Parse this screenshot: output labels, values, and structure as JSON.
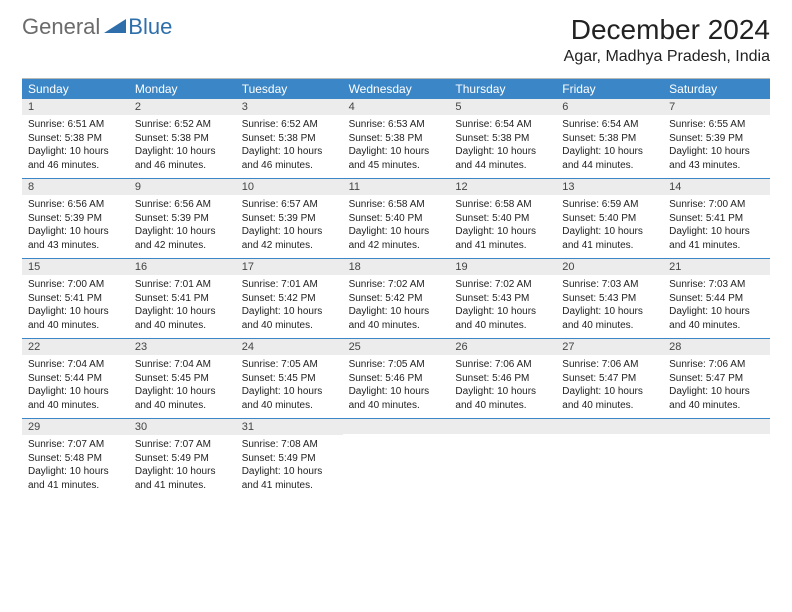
{
  "logo": {
    "general": "General",
    "blue": "Blue"
  },
  "title": "December 2024",
  "location": "Agar, Madhya Pradesh, India",
  "colors": {
    "header_bg": "#3b86c6",
    "daynum_bg": "#ececec",
    "rule": "#3b86c6",
    "logo_gray": "#6b6b6b",
    "logo_blue": "#2e6fab"
  },
  "weekdays": [
    "Sunday",
    "Monday",
    "Tuesday",
    "Wednesday",
    "Thursday",
    "Friday",
    "Saturday"
  ],
  "weeks": [
    [
      {
        "day": 1,
        "sunrise": "6:51 AM",
        "sunset": "5:38 PM",
        "daylight": "10 hours and 46 minutes."
      },
      {
        "day": 2,
        "sunrise": "6:52 AM",
        "sunset": "5:38 PM",
        "daylight": "10 hours and 46 minutes."
      },
      {
        "day": 3,
        "sunrise": "6:52 AM",
        "sunset": "5:38 PM",
        "daylight": "10 hours and 46 minutes."
      },
      {
        "day": 4,
        "sunrise": "6:53 AM",
        "sunset": "5:38 PM",
        "daylight": "10 hours and 45 minutes."
      },
      {
        "day": 5,
        "sunrise": "6:54 AM",
        "sunset": "5:38 PM",
        "daylight": "10 hours and 44 minutes."
      },
      {
        "day": 6,
        "sunrise": "6:54 AM",
        "sunset": "5:38 PM",
        "daylight": "10 hours and 44 minutes."
      },
      {
        "day": 7,
        "sunrise": "6:55 AM",
        "sunset": "5:39 PM",
        "daylight": "10 hours and 43 minutes."
      }
    ],
    [
      {
        "day": 8,
        "sunrise": "6:56 AM",
        "sunset": "5:39 PM",
        "daylight": "10 hours and 43 minutes."
      },
      {
        "day": 9,
        "sunrise": "6:56 AM",
        "sunset": "5:39 PM",
        "daylight": "10 hours and 42 minutes."
      },
      {
        "day": 10,
        "sunrise": "6:57 AM",
        "sunset": "5:39 PM",
        "daylight": "10 hours and 42 minutes."
      },
      {
        "day": 11,
        "sunrise": "6:58 AM",
        "sunset": "5:40 PM",
        "daylight": "10 hours and 42 minutes."
      },
      {
        "day": 12,
        "sunrise": "6:58 AM",
        "sunset": "5:40 PM",
        "daylight": "10 hours and 41 minutes."
      },
      {
        "day": 13,
        "sunrise": "6:59 AM",
        "sunset": "5:40 PM",
        "daylight": "10 hours and 41 minutes."
      },
      {
        "day": 14,
        "sunrise": "7:00 AM",
        "sunset": "5:41 PM",
        "daylight": "10 hours and 41 minutes."
      }
    ],
    [
      {
        "day": 15,
        "sunrise": "7:00 AM",
        "sunset": "5:41 PM",
        "daylight": "10 hours and 40 minutes."
      },
      {
        "day": 16,
        "sunrise": "7:01 AM",
        "sunset": "5:41 PM",
        "daylight": "10 hours and 40 minutes."
      },
      {
        "day": 17,
        "sunrise": "7:01 AM",
        "sunset": "5:42 PM",
        "daylight": "10 hours and 40 minutes."
      },
      {
        "day": 18,
        "sunrise": "7:02 AM",
        "sunset": "5:42 PM",
        "daylight": "10 hours and 40 minutes."
      },
      {
        "day": 19,
        "sunrise": "7:02 AM",
        "sunset": "5:43 PM",
        "daylight": "10 hours and 40 minutes."
      },
      {
        "day": 20,
        "sunrise": "7:03 AM",
        "sunset": "5:43 PM",
        "daylight": "10 hours and 40 minutes."
      },
      {
        "day": 21,
        "sunrise": "7:03 AM",
        "sunset": "5:44 PM",
        "daylight": "10 hours and 40 minutes."
      }
    ],
    [
      {
        "day": 22,
        "sunrise": "7:04 AM",
        "sunset": "5:44 PM",
        "daylight": "10 hours and 40 minutes."
      },
      {
        "day": 23,
        "sunrise": "7:04 AM",
        "sunset": "5:45 PM",
        "daylight": "10 hours and 40 minutes."
      },
      {
        "day": 24,
        "sunrise": "7:05 AM",
        "sunset": "5:45 PM",
        "daylight": "10 hours and 40 minutes."
      },
      {
        "day": 25,
        "sunrise": "7:05 AM",
        "sunset": "5:46 PM",
        "daylight": "10 hours and 40 minutes."
      },
      {
        "day": 26,
        "sunrise": "7:06 AM",
        "sunset": "5:46 PM",
        "daylight": "10 hours and 40 minutes."
      },
      {
        "day": 27,
        "sunrise": "7:06 AM",
        "sunset": "5:47 PM",
        "daylight": "10 hours and 40 minutes."
      },
      {
        "day": 28,
        "sunrise": "7:06 AM",
        "sunset": "5:47 PM",
        "daylight": "10 hours and 40 minutes."
      }
    ],
    [
      {
        "day": 29,
        "sunrise": "7:07 AM",
        "sunset": "5:48 PM",
        "daylight": "10 hours and 41 minutes."
      },
      {
        "day": 30,
        "sunrise": "7:07 AM",
        "sunset": "5:49 PM",
        "daylight": "10 hours and 41 minutes."
      },
      {
        "day": 31,
        "sunrise": "7:08 AM",
        "sunset": "5:49 PM",
        "daylight": "10 hours and 41 minutes."
      },
      null,
      null,
      null,
      null
    ]
  ]
}
